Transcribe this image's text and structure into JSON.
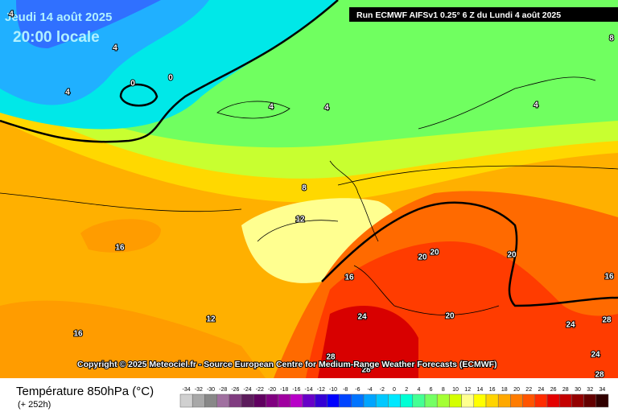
{
  "header": {
    "date": "Jeudi 14 août 2025",
    "time": "20:00 locale",
    "run": "Run ECMWF AIFSv1 0.25° 6 Z du Lundi 4 août 2025"
  },
  "copyright": "Copyright © 2025 Meteociel.fr - Source European Centre for Medium-Range Weather Forecasts (ECMWF)",
  "legend": {
    "title": "Température 850hPa (°C)",
    "lead": "(+ 252h)",
    "labels": [
      -34,
      -32,
      -30,
      -28,
      -26,
      -24,
      -22,
      -20,
      -18,
      -16,
      -14,
      -12,
      -10,
      -8,
      -6,
      -4,
      -2,
      0,
      2,
      4,
      6,
      8,
      10,
      12,
      14,
      16,
      18,
      20,
      22,
      24,
      26,
      28,
      30,
      32,
      34
    ],
    "colors": [
      "#d0d0d0",
      "#a8a8a8",
      "#888888",
      "#a070a0",
      "#803c80",
      "#5c1c5c",
      "#600060",
      "#800080",
      "#a000a0",
      "#b800c8",
      "#6800c8",
      "#3400d4",
      "#0000ff",
      "#0044ff",
      "#0074ff",
      "#00a4ff",
      "#00c8ff",
      "#00e8ff",
      "#00ffd4",
      "#44ff94",
      "#74ff64",
      "#a4ff34",
      "#d4ff00",
      "#ffff90",
      "#ffff00",
      "#ffd400",
      "#ffa800",
      "#ff7c00",
      "#ff5400",
      "#ff2c00",
      "#e40000",
      "#c40000",
      "#940000",
      "#640000",
      "#300000"
    ]
  },
  "contour_labels": [
    4,
    4,
    4,
    0,
    0,
    4,
    4,
    4,
    8,
    8,
    12,
    16,
    16,
    12,
    16,
    20,
    20,
    20,
    16,
    24,
    20,
    24,
    28,
    24,
    28,
    28,
    28
  ]
}
